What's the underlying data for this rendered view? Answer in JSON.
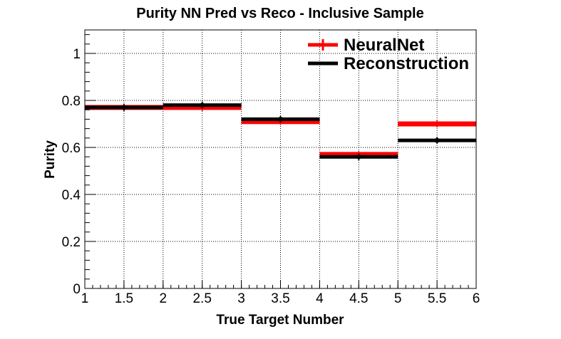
{
  "chart_data": {
    "type": "line",
    "title": "Purity NN Pred vs Reco - Inclusive Sample",
    "xlabel": "True Target Number",
    "ylabel": "Purity",
    "xlim": [
      1,
      6
    ],
    "ylim": [
      0,
      1.1
    ],
    "x_ticks": [
      "1",
      "1.5",
      "2",
      "2.5",
      "3",
      "3.5",
      "4",
      "4.5",
      "5",
      "5.5",
      "6"
    ],
    "y_ticks": [
      "0",
      "0.2",
      "0.4",
      "0.6",
      "0.8",
      "1"
    ],
    "grid": true,
    "legend_position": "top-right",
    "bin_edges": [
      1,
      2,
      3,
      4,
      5,
      6
    ],
    "x": [
      1.5,
      2.5,
      3.5,
      4.5,
      5.5
    ],
    "series": [
      {
        "name": "NeuralNet",
        "color": "#ff0000",
        "values": [
          0.77,
          0.77,
          0.71,
          0.57,
          0.7
        ]
      },
      {
        "name": "Reconstruction",
        "color": "#000000",
        "values": [
          0.77,
          0.78,
          0.72,
          0.56,
          0.63
        ]
      }
    ]
  }
}
